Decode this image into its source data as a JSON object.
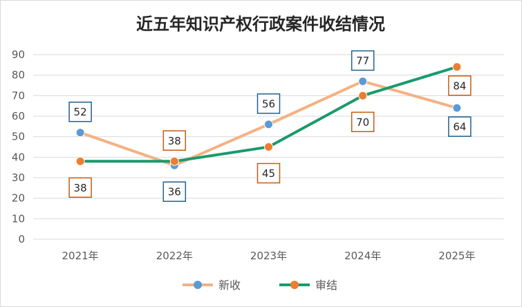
{
  "chart_data": {
    "type": "line",
    "title": "近五年知识产权行政案件收结情况",
    "categories": [
      "2021年",
      "2022年",
      "2023年",
      "2024年",
      "2025年"
    ],
    "series": [
      {
        "name": "新收",
        "values": [
          52,
          36,
          56,
          77,
          64
        ],
        "line_color": "#f4b183",
        "marker_color": "#5b9bd5",
        "label_border": "#1f5f8b"
      },
      {
        "name": "审结",
        "values": [
          38,
          38,
          45,
          70,
          84
        ],
        "line_color": "#1a9a6c",
        "marker_color": "#ed7d31",
        "label_border": "#c55a11"
      }
    ],
    "ylim": [
      0,
      90
    ],
    "yticks": [
      "0",
      "10",
      "20",
      "30",
      "40",
      "50",
      "60",
      "70",
      "80",
      "90"
    ],
    "grid": true,
    "legend_position": "bottom"
  }
}
